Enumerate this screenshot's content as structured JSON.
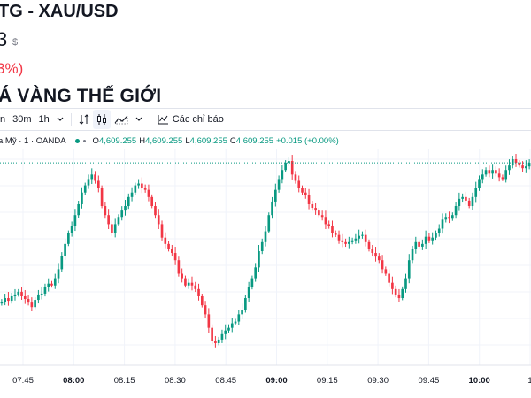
{
  "header": {
    "title": "TG - XAU/USD",
    "price": "3",
    "currency": "$",
    "change": "3%)"
  },
  "section_title": "Á VÀNG THẾ GIỚI",
  "toolbar": {
    "interval_partial": "n",
    "interval_30m": "30m",
    "interval_1h": "1h",
    "indicators_label": "Các chỉ báo",
    "icons": [
      "chevron-down-icon",
      "compare-icon",
      "candles-icon",
      "area-chart-icon",
      "chevron-down-icon",
      "indicators-icon"
    ]
  },
  "legend": {
    "symbol": "a Mỹ · 1 · OANDA",
    "o_label": "O",
    "o_value": "4,609.255",
    "h_label": "H",
    "h_value": "4,609.255",
    "l_label": "L",
    "l_value": "4,609.255",
    "c_label": "C",
    "c_value": "4,609.255",
    "change": "+0.015 (+0.00%)"
  },
  "chart_data": {
    "type": "candlestick",
    "symbol": "XAU/USD",
    "interval": "1",
    "x_tick_labels": [
      "07:45",
      "08:00",
      "08:15",
      "08:30",
      "08:45",
      "09:00",
      "09:15",
      "09:30",
      "09:45",
      "10:00",
      "1"
    ],
    "bold_ticks": [
      "08:00",
      "09:00",
      "10:00"
    ],
    "last_close_line": true,
    "up_color": "#089981",
    "down_color": "#f23645",
    "grid": true,
    "close_series_shape": [
      54,
      58,
      55,
      60,
      62,
      65,
      60,
      57,
      53,
      48,
      56,
      62,
      63,
      70,
      74,
      72,
      80,
      90,
      105,
      118,
      130,
      138,
      150,
      162,
      175,
      183,
      190,
      195,
      188,
      180,
      160,
      150,
      140,
      130,
      140,
      148,
      155,
      160,
      170,
      175,
      183,
      185,
      180,
      178,
      170,
      160,
      150,
      140,
      125,
      118,
      112,
      108,
      100,
      85,
      80,
      72,
      75,
      72,
      68,
      60,
      50,
      40,
      25,
      10,
      8,
      12,
      18,
      22,
      25,
      30,
      32,
      40,
      45,
      58,
      70,
      80,
      92,
      110,
      120,
      132,
      150,
      165,
      178,
      190,
      200,
      208,
      210,
      195,
      188,
      180,
      175,
      172,
      162,
      158,
      155,
      150,
      148,
      140,
      138,
      130,
      128,
      122,
      120,
      118,
      120,
      122,
      124,
      127,
      128,
      120,
      112,
      108,
      104,
      100,
      90,
      85,
      75,
      68,
      62,
      58,
      68,
      80,
      100,
      112,
      120,
      115,
      118,
      126,
      122,
      125,
      130,
      135,
      145,
      148,
      146,
      150,
      160,
      168,
      170,
      166,
      160,
      170,
      180,
      190,
      195,
      200,
      196,
      200,
      196,
      192,
      190,
      200,
      205,
      212,
      208,
      205,
      202,
      204,
      208
    ]
  }
}
